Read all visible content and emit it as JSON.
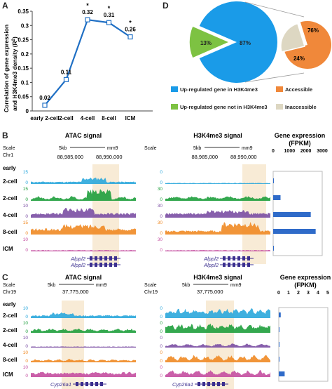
{
  "panels": {
    "a": "A",
    "b": "B",
    "c": "C",
    "d": "D"
  },
  "panel_a": {
    "ylabel_line1": "Correlation of gene expression",
    "ylabel_line2": "and H3K4me3 density (R",
    "ylabel_sup": "2",
    "ylabel_end": ")",
    "yticks": [
      "0",
      "0.05",
      "0.1",
      "0.15",
      "0.2",
      "0.25",
      "0.3",
      "0.35"
    ],
    "xticks": [
      "early 2-cell",
      "2-cell",
      "4-cell",
      "8-cell",
      "ICM"
    ],
    "point_labels": [
      "0.02",
      "0.11",
      "0.32",
      "0.31",
      "0.26"
    ],
    "stars": [
      "*",
      "*",
      "*"
    ],
    "line_color": "#1f6fc4"
  },
  "chart_data": [
    {
      "type": "line",
      "categories": [
        "early 2-cell",
        "2-cell",
        "4-cell",
        "8-cell",
        "ICM"
      ],
      "values": [
        0.02,
        0.11,
        0.32,
        0.31,
        0.26
      ],
      "ylim": [
        0,
        0.35
      ],
      "ylabel": "Correlation of gene expression and H3K4me3 density (R2)",
      "annotations": [
        "*",
        "*",
        "*"
      ]
    },
    {
      "type": "pie",
      "categories": [
        "Up-regulated gene in H3K4me3",
        "Up-regulated gene not in H3K4me3"
      ],
      "values": [
        87,
        13
      ],
      "labels": [
        "87%",
        "13%"
      ],
      "colors": [
        "#1a9be8",
        "#7dc242"
      ]
    },
    {
      "type": "pie",
      "categories": [
        "Accessible",
        "Inaccessible"
      ],
      "values": [
        76,
        24
      ],
      "labels": [
        "76%",
        "24%"
      ],
      "colors": [
        "#f0883a",
        "#ddd7c2"
      ]
    },
    {
      "type": "bar",
      "title": "Gene expression (FPKM)",
      "categories": [
        "early 2-cell",
        "2-cell",
        "4-cell",
        "8-cell",
        "ICM"
      ],
      "values": [
        0,
        450,
        2300,
        2600,
        0
      ],
      "xlim": [
        0,
        3000
      ]
    },
    {
      "type": "bar",
      "title": "Gene expression (FPKM)",
      "categories": [
        "early 2-cell",
        "2-cell",
        "4-cell",
        "8-cell",
        "ICM"
      ],
      "values": [
        0.2,
        0,
        0.05,
        0.05,
        0.6
      ],
      "xlim": [
        0,
        5
      ]
    }
  ],
  "panel_d": {
    "legend": [
      {
        "label": "Up-regulated gene in H3K4me3",
        "color": "#1a9be8"
      },
      {
        "label": "Accessible",
        "color": "#f0883a"
      },
      {
        "label": "Up-regulated gene not in H3K4me3",
        "color": "#7dc242"
      },
      {
        "label": "Inaccessible",
        "color": "#ddd7c2"
      }
    ]
  },
  "panel_b": {
    "atac_title": "ATAC signal",
    "h3k_title": "H3K4me3 signal",
    "expr_title_line1": "Gene expression",
    "expr_title_line2": "(FPKM)",
    "expr_ticks": [
      "0",
      "1000",
      "2000",
      "3000"
    ],
    "scale": "Scale",
    "chr": "Chr1",
    "scalebar": "5kb",
    "assembly": "mm9",
    "coord1": "88,985,000",
    "coord2": "88,990,000",
    "early": "early",
    "rows": [
      "2-cell",
      "2-cell",
      "4-cell",
      "8-cell",
      "ICM"
    ],
    "atac_scale": [
      "15",
      "15",
      "10",
      "15",
      "10"
    ],
    "h3k_scale": [
      "0",
      "30",
      "30",
      "30",
      "30"
    ],
    "gene": "Alppl2"
  },
  "panel_c": {
    "atac_title": "ATAC signal",
    "h3k_title": "H3K4me3 signal",
    "expr_title_line1": "Gene expression",
    "expr_title_line2": "(FPKM)",
    "expr_ticks": [
      "0",
      "1",
      "2",
      "3",
      "4",
      "5"
    ],
    "scale": "Scale",
    "chr": "Chr19",
    "scalebar": "5kb",
    "assembly": "mm9",
    "coord": "37,775,000",
    "early": "early",
    "rows": [
      "2-cell",
      "2-cell",
      "4-cell",
      "8-cell",
      "ICM"
    ],
    "atac_scale": [
      "10",
      "10",
      "10",
      "10",
      "10"
    ],
    "h3k_scale": [
      "0",
      "0",
      "0",
      "0",
      "0"
    ],
    "gene": "Cyp26a1"
  },
  "track_colors": [
    "#2aa7dc",
    "#1e9e3c",
    "#7a4ea3",
    "#f08a24",
    "#c44ea0"
  ]
}
